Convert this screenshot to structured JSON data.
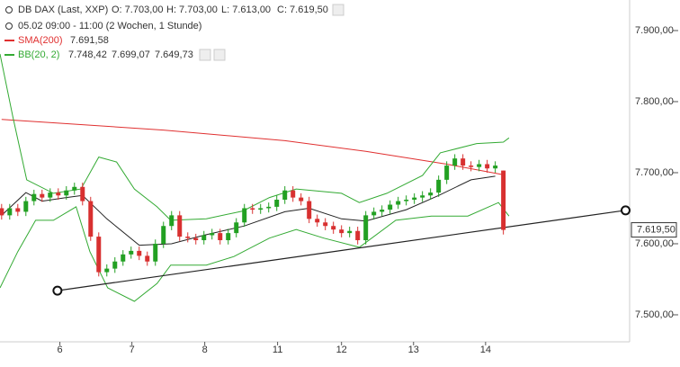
{
  "header": {
    "title": "DB DAX (Last, XXP)",
    "o": "O: 7.703,00",
    "h": "H: 7.703,00",
    "l": "L: 7.613,00",
    "c": "C: 7.619,50",
    "period": "05.02 09:00 - 11:00 (2 Wochen, 1 Stunde)",
    "sma_name": "SMA(200)",
    "sma_value": "7.691,58",
    "bb_name": "BB(20, 2)",
    "bb_upper": "7.748,42",
    "bb_mid": "7.699,07",
    "bb_lower": "7.649,73"
  },
  "chart_data": {
    "type": "candlestick",
    "up_color": "#22a022",
    "down_color": "#d83030",
    "x": [
      0,
      1,
      2,
      3,
      4,
      5,
      6,
      7,
      8,
      9,
      10,
      11,
      12,
      13,
      14,
      15,
      16,
      17,
      18,
      19,
      20,
      21,
      22,
      23,
      24,
      25,
      26,
      27,
      28,
      29,
      30,
      31,
      32,
      33,
      34,
      35,
      36,
      37,
      38,
      39,
      40,
      41,
      42,
      43,
      44,
      45,
      46,
      47,
      48,
      49,
      50,
      51,
      52,
      53,
      54,
      55,
      56,
      57,
      58,
      59,
      60,
      61,
      62
    ],
    "open": [
      7650,
      7640,
      7650,
      7645,
      7660,
      7670,
      7665,
      7672,
      7668,
      7675,
      7680,
      7660,
      7610,
      7560,
      7565,
      7575,
      7585,
      7590,
      7583,
      7575,
      7600,
      7625,
      7640,
      7610,
      7608,
      7605,
      7612,
      7615,
      7605,
      7615,
      7630,
      7650,
      7648,
      7650,
      7652,
      7662,
      7675,
      7665,
      7660,
      7635,
      7630,
      7625,
      7620,
      7615,
      7618,
      7605,
      7640,
      7645,
      7648,
      7655,
      7660,
      7662,
      7665,
      7668,
      7672,
      7690,
      7710,
      7720,
      7710,
      7708,
      7712,
      7706,
      7703
    ],
    "high": [
      7656,
      7656,
      7656,
      7666,
      7676,
      7676,
      7678,
      7678,
      7681,
      7686,
      7686,
      7666,
      7616,
      7571,
      7581,
      7591,
      7596,
      7596,
      7589,
      7606,
      7631,
      7646,
      7646,
      7616,
      7614,
      7618,
      7621,
      7621,
      7621,
      7636,
      7656,
      7656,
      7656,
      7658,
      7668,
      7681,
      7681,
      7671,
      7666,
      7641,
      7636,
      7631,
      7626,
      7624,
      7624,
      7646,
      7651,
      7654,
      7661,
      7666,
      7668,
      7671,
      7674,
      7678,
      7696,
      7716,
      7726,
      7726,
      7716,
      7718,
      7718,
      7716,
      7703
    ],
    "low": [
      7634,
      7634,
      7639,
      7639,
      7654,
      7659,
      7659,
      7662,
      7662,
      7669,
      7654,
      7604,
      7554,
      7554,
      7559,
      7569,
      7579,
      7577,
      7569,
      7569,
      7594,
      7619,
      7604,
      7602,
      7599,
      7599,
      7606,
      7599,
      7599,
      7609,
      7624,
      7642,
      7642,
      7644,
      7646,
      7656,
      7659,
      7654,
      7629,
      7624,
      7619,
      7614,
      7609,
      7609,
      7599,
      7599,
      7634,
      7639,
      7642,
      7649,
      7654,
      7656,
      7659,
      7662,
      7666,
      7684,
      7704,
      7704,
      7702,
      7702,
      7700,
      7700,
      7613
    ],
    "close": [
      7640,
      7650,
      7645,
      7660,
      7670,
      7665,
      7672,
      7668,
      7675,
      7680,
      7660,
      7610,
      7560,
      7565,
      7575,
      7585,
      7590,
      7583,
      7575,
      7600,
      7625,
      7640,
      7610,
      7608,
      7605,
      7612,
      7615,
      7605,
      7615,
      7630,
      7650,
      7648,
      7650,
      7652,
      7662,
      7675,
      7665,
      7660,
      7635,
      7630,
      7625,
      7620,
      7615,
      7618,
      7605,
      7640,
      7645,
      7648,
      7655,
      7660,
      7662,
      7665,
      7668,
      7672,
      7690,
      7710,
      7720,
      7710,
      7708,
      7712,
      7706,
      7710,
      7619.5
    ],
    "lines": [
      {
        "color": "#e03030",
        "x": [
          0,
          20,
          35,
          45,
          55,
          62
        ],
        "values": [
          7775,
          7760,
          7745,
          7730,
          7712,
          7697
        ]
      },
      {
        "color": "#222222",
        "x": [
          0,
          3,
          5,
          8,
          10,
          13,
          17,
          21,
          25,
          30,
          35,
          38,
          42,
          45,
          50,
          54,
          58,
          61
        ],
        "values": [
          7640,
          7672,
          7660,
          7665,
          7668,
          7635,
          7598,
          7600,
          7612,
          7625,
          7645,
          7650,
          7635,
          7632,
          7648,
          7668,
          7690,
          7695
        ]
      },
      {
        "color": "#33aa33",
        "x": [
          -0.2,
          1.4,
          3.1,
          6.4,
          9.8,
          12,
          14.2,
          16.4,
          19.2,
          20.9,
          25.3,
          29.8,
          33.1,
          36.4,
          42,
          44.2,
          47.6,
          52,
          54.2,
          58.7,
          62,
          62.7
        ],
        "values": [
          7867,
          7778,
          7690,
          7671,
          7677,
          7722,
          7715,
          7677,
          7652,
          7633,
          7635,
          7646,
          7665,
          7677,
          7671,
          7658,
          7671,
          7696,
          7728,
          7741,
          7743,
          7749
        ]
      },
      {
        "color": "#33aa33",
        "x": [
          -0.2,
          2,
          4.2,
          6.4,
          9.2,
          10.9,
          13.1,
          16.4,
          19.2,
          20.9,
          25.3,
          28.7,
          33.1,
          36.4,
          39.8,
          44.2,
          48.7,
          53.1,
          57.6,
          61.4,
          62.7
        ],
        "values": [
          7538,
          7589,
          7633,
          7633,
          7652,
          7589,
          7538,
          7519,
          7544,
          7570,
          7570,
          7582,
          7608,
          7620,
          7608,
          7595,
          7633,
          7639,
          7639,
          7658,
          7639
        ]
      }
    ],
    "trendline": {
      "x": [
        6.9,
        77.1
      ],
      "values": [
        7534,
        7647
      ]
    },
    "last_label": "7.619,50",
    "last_value": 7619.5,
    "xlim": [
      -0.2,
      77.6
    ],
    "ylim": [
      7462,
      7943
    ],
    "xticks": [
      {
        "value": 7.2,
        "label": "6"
      },
      {
        "value": 16.1,
        "label": "7"
      },
      {
        "value": 25.1,
        "label": "8"
      },
      {
        "value": 34.1,
        "label": "11"
      },
      {
        "value": 42,
        "label": "12"
      },
      {
        "value": 50.9,
        "label": "13"
      },
      {
        "value": 59.8,
        "label": "14"
      }
    ],
    "yticks": [
      {
        "value": 7500,
        "label": "7.500,00"
      },
      {
        "value": 7600,
        "label": "7.600,00"
      },
      {
        "value": 7700,
        "label": "7.700,00"
      },
      {
        "value": 7800,
        "label": "7.800,00"
      },
      {
        "value": 7900,
        "label": "7.900,00"
      }
    ]
  }
}
